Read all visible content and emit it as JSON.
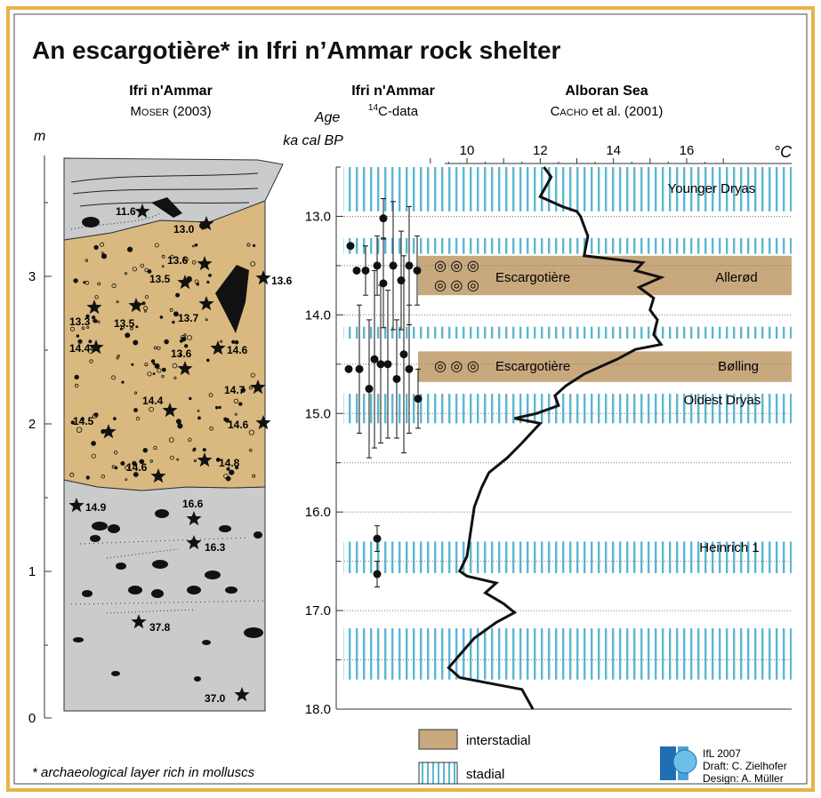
{
  "title": "An escargotière* in Ifri n’Ammar rock shelter",
  "footnote": "* archaeological layer rich in molluscs",
  "columns": {
    "profile_title": "Ifri n'Ammar",
    "profile_source_name": "Moser",
    "profile_source_year": "(2003)",
    "c14_title": "Ifri n'Ammar",
    "c14_sup": "14",
    "c14_sub": "C-data",
    "sea_title": "Alboran Sea",
    "sea_source_name": "Cacho",
    "sea_source_rest": "et al. (2001)"
  },
  "axes": {
    "depth_unit": "m",
    "depth_ticks": [
      "0",
      "1",
      "2",
      "3"
    ],
    "age_label_1": "Age",
    "age_label_2": "ka cal BP",
    "age_ticks": [
      "13.0",
      "14.0",
      "15.0",
      "16.0",
      "17.0",
      "18.0"
    ],
    "temp_unit": "°C",
    "temp_ticks": [
      "10",
      "12",
      "14",
      "16"
    ]
  },
  "bands": {
    "younger_dryas": "Younger Dryas",
    "allerod": "Allerød",
    "bolling": "Bølling",
    "oldest_dryas": "Oldest Dryas",
    "heinrich": "Heinrich 1",
    "escargotiere_1": "Escargotière",
    "escargotiere_2": "Escargotière"
  },
  "profile_labels": [
    "11.6",
    "13.0",
    "13.6",
    "13.6",
    "13.5",
    "13.3",
    "13.5",
    "13.7",
    "14.4",
    "13.6",
    "14.6",
    "14.7",
    "14.4",
    "14.5",
    "14.6",
    "14.6",
    "14.8",
    "14.9",
    "16.6",
    "16.3",
    "37.8",
    "37.0"
  ],
  "legend": {
    "interstadial": "interstadial",
    "stadial": "stadial"
  },
  "credits": {
    "line1": "IfL 2007",
    "line2": "Draft: C. Zielhofer",
    "line3": "Design: A. Müller"
  },
  "colors": {
    "interstadial": "#c8a97e",
    "stadial": "#5ab7d3",
    "profile_gray": "#c9cbcd",
    "border": "#e7b34a"
  },
  "chart_data": {
    "type": "line",
    "title": "",
    "xlabel": "°C",
    "ylabel": "Age ka cal BP",
    "xlim": [
      8.5,
      19
    ],
    "ylim": [
      18.0,
      12.5
    ],
    "series": [
      {
        "name": "",
        "points": [
          [
            12.1,
            12.5
          ],
          [
            12.3,
            12.6
          ],
          [
            12.0,
            12.8
          ],
          [
            12.6,
            12.9
          ],
          [
            13.0,
            12.95
          ],
          [
            13.1,
            13.0
          ],
          [
            13.2,
            13.1
          ],
          [
            13.3,
            13.2
          ],
          [
            13.2,
            13.4
          ],
          [
            14.8,
            13.47
          ],
          [
            14.6,
            13.55
          ],
          [
            15.3,
            13.62
          ],
          [
            14.7,
            13.72
          ],
          [
            15.1,
            13.83
          ],
          [
            15.0,
            13.95
          ],
          [
            15.2,
            14.05
          ],
          [
            15.1,
            14.2
          ],
          [
            15.3,
            14.3
          ],
          [
            14.6,
            14.35
          ],
          [
            14.1,
            14.45
          ],
          [
            13.8,
            14.5
          ],
          [
            13.2,
            14.6
          ],
          [
            12.7,
            14.72
          ],
          [
            12.4,
            14.82
          ],
          [
            12.5,
            14.92
          ],
          [
            11.9,
            15.0
          ],
          [
            11.3,
            15.05
          ],
          [
            12.0,
            15.1
          ],
          [
            11.5,
            15.3
          ],
          [
            11.1,
            15.45
          ],
          [
            10.6,
            15.6
          ],
          [
            10.4,
            15.75
          ],
          [
            10.2,
            15.95
          ],
          [
            10.1,
            16.2
          ],
          [
            10.0,
            16.45
          ],
          [
            9.8,
            16.6
          ],
          [
            10.0,
            16.65
          ],
          [
            10.8,
            16.72
          ],
          [
            10.5,
            16.82
          ],
          [
            11.0,
            16.93
          ],
          [
            11.3,
            17.02
          ],
          [
            10.8,
            17.12
          ],
          [
            10.2,
            17.28
          ],
          [
            9.8,
            17.45
          ],
          [
            9.5,
            17.58
          ],
          [
            9.8,
            17.68
          ],
          [
            11.5,
            17.8
          ],
          [
            11.8,
            18.0
          ]
        ]
      }
    ],
    "c14_dates": [
      {
        "age": 13.3,
        "err": 0.0
      },
      {
        "age": 13.55,
        "err": 0.0
      },
      {
        "age": 13.55,
        "err": 0.25
      },
      {
        "age": 13.5,
        "err": 0.3
      },
      {
        "age": 13.68,
        "err": 0.45
      },
      {
        "age": 13.02,
        "err": 0.2
      },
      {
        "age": 13.5,
        "err": 0.65
      },
      {
        "age": 13.65,
        "err": 0.5
      },
      {
        "age": 13.5,
        "err": 0.6
      },
      {
        "age": 13.55,
        "err": 0.35
      },
      {
        "age": 14.55,
        "err": 0.0
      },
      {
        "age": 14.55,
        "err": 0.65
      },
      {
        "age": 14.75,
        "err": 0.7
      },
      {
        "age": 14.45,
        "err": 0.9
      },
      {
        "age": 14.5,
        "err": 0.8
      },
      {
        "age": 14.5,
        "err": 0.75
      },
      {
        "age": 14.65,
        "err": 0.6
      },
      {
        "age": 14.4,
        "err": 1.0
      },
      {
        "age": 14.55,
        "err": 0.65
      },
      {
        "age": 14.85,
        "err": 0.3
      },
      {
        "age": 16.27,
        "err": 0.13
      },
      {
        "age": 16.63,
        "err": 0.13
      }
    ],
    "interstadial_bands": [
      [
        13.4,
        13.8
      ],
      [
        14.37,
        14.68
      ]
    ],
    "stadial_bands": [
      [
        12.5,
        12.95
      ],
      [
        13.22,
        13.38
      ],
      [
        14.12,
        14.24
      ],
      [
        14.8,
        15.1
      ],
      [
        16.3,
        16.62
      ],
      [
        17.18,
        17.7
      ]
    ]
  }
}
